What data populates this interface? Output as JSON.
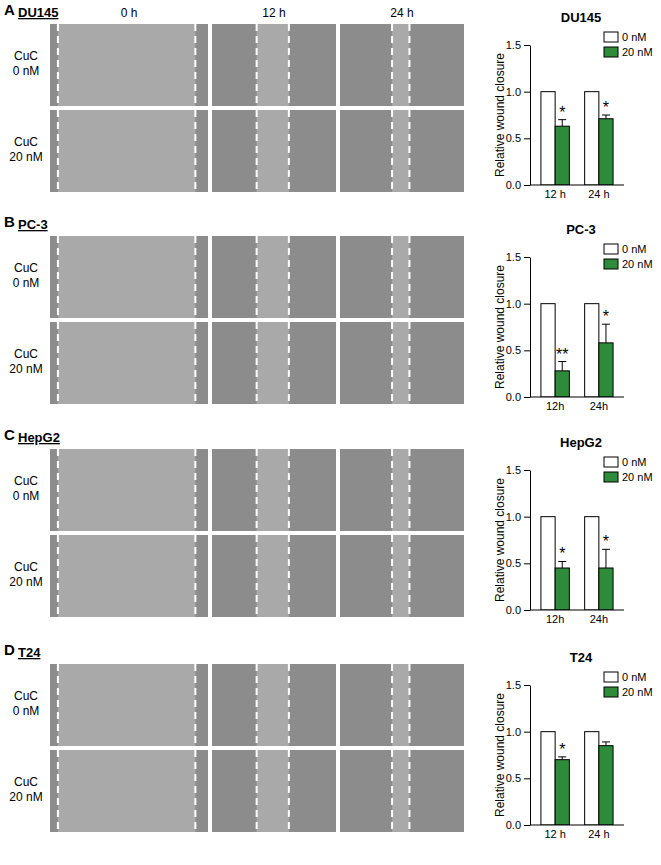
{
  "panels": [
    {
      "letter": "A",
      "cell_line": "DU145",
      "columns": [
        "0 h",
        "12 h",
        "24 h"
      ],
      "rows": [
        [
          "CuC",
          "0 nM"
        ],
        [
          "CuC",
          "20 nM"
        ]
      ]
    },
    {
      "letter": "B",
      "cell_line": "PC-3",
      "rows": [
        [
          "CuC",
          "0 nM"
        ],
        [
          "CuC",
          "20 nM"
        ]
      ]
    },
    {
      "letter": "C",
      "cell_line": "HepG2",
      "rows": [
        [
          "CuC",
          "0 nM"
        ],
        [
          "CuC",
          "20 nM"
        ]
      ]
    },
    {
      "letter": "D",
      "cell_line": "T24",
      "rows": [
        [
          "CuC",
          "0 nM"
        ],
        [
          "CuC",
          "20 nM"
        ]
      ]
    }
  ],
  "chart_data": [
    {
      "type": "bar",
      "title": "DU145",
      "y_label": "Relative wound closure",
      "categories": [
        "12 h",
        "24 h"
      ],
      "series": [
        {
          "name": "0 nM",
          "color": "#ffffff",
          "values": [
            1.0,
            1.0
          ]
        },
        {
          "name": "20 nM",
          "color": "#2e8b3a",
          "values": [
            0.63,
            0.71
          ],
          "errors": [
            0.07,
            0.04
          ],
          "significance": [
            "*",
            "*"
          ]
        }
      ],
      "ylim": [
        0,
        1.5
      ],
      "yticks": [
        {
          "value": 0,
          "label": "0.0"
        },
        {
          "value": 0.5,
          "label": "0.5"
        },
        {
          "value": 1,
          "label": "1.0"
        },
        {
          "value": 1.5,
          "label": "1.5"
        }
      ],
      "legend": "upper right",
      "grid": false
    },
    {
      "type": "bar",
      "title": "PC-3",
      "y_label": "Relative wound closure",
      "categories": [
        "12h",
        "24h"
      ],
      "series": [
        {
          "name": "0 nM",
          "color": "#ffffff",
          "values": [
            1.0,
            1.0
          ]
        },
        {
          "name": "20 nM",
          "color": "#2e8b3a",
          "values": [
            0.28,
            0.58
          ],
          "errors": [
            0.1,
            0.2
          ],
          "significance": [
            "**",
            "*"
          ]
        }
      ],
      "ylim": [
        0,
        1.5
      ],
      "yticks": [
        {
          "value": 0,
          "label": "0.0"
        },
        {
          "value": 0.5,
          "label": "0.5"
        },
        {
          "value": 1,
          "label": "1.0"
        },
        {
          "value": 1.5,
          "label": "1.5"
        }
      ],
      "legend": "upper right",
      "grid": false
    },
    {
      "type": "bar",
      "title": "HepG2",
      "y_label": "Relative wound closure",
      "categories": [
        "12h",
        "24h"
      ],
      "series": [
        {
          "name": "0 nM",
          "color": "#ffffff",
          "values": [
            1.0,
            1.0
          ]
        },
        {
          "name": "20 nM",
          "color": "#2e8b3a",
          "values": [
            0.45,
            0.45
          ],
          "errors": [
            0.07,
            0.2
          ],
          "significance": [
            "*",
            "*"
          ]
        }
      ],
      "ylim": [
        0,
        1.5
      ],
      "yticks": [
        {
          "value": 0,
          "label": "0.0"
        },
        {
          "value": 0.5,
          "label": "0.5"
        },
        {
          "value": 1,
          "label": "1.0"
        },
        {
          "value": 1.5,
          "label": "1.5"
        }
      ],
      "legend": "upper right",
      "grid": false
    },
    {
      "type": "bar",
      "title": "T24",
      "y_label": "Relative wound closure",
      "categories": [
        "12 h",
        "24 h"
      ],
      "series": [
        {
          "name": "0 nM",
          "color": "#ffffff",
          "values": [
            1.0,
            1.0
          ]
        },
        {
          "name": "20 nM",
          "color": "#2e8b3a",
          "values": [
            0.7,
            0.85
          ],
          "errors": [
            0.03,
            0.04
          ],
          "significance": [
            "*",
            null
          ]
        }
      ],
      "ylim": [
        0,
        1.5
      ],
      "yticks": [
        {
          "value": 0,
          "label": "0.0"
        },
        {
          "value": 0.5,
          "label": "0.5"
        },
        {
          "value": 1,
          "label": "1.0"
        },
        {
          "value": 1.5,
          "label": "1.5"
        }
      ],
      "legend": "upper right",
      "grid": false
    }
  ]
}
